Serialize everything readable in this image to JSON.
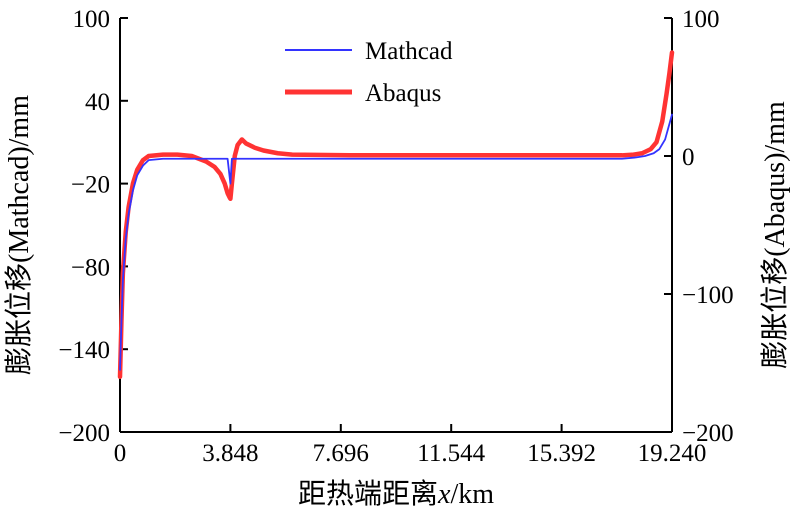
{
  "chart_data": {
    "type": "line",
    "xlabel_prefix": "距热端距离",
    "xlabel_var": "x",
    "xlabel_unit": "/km",
    "ylabel_left": "膨胀位移(Mathcad)/mm",
    "ylabel_right": "膨胀位移(Abaqus)/mm",
    "xlim": [
      0,
      19.24
    ],
    "ylim_left": [
      -200,
      100
    ],
    "ylim_right": [
      -200,
      100
    ],
    "x_ticks": [
      0,
      3.848,
      7.696,
      11.544,
      15.392,
      19.24
    ],
    "x_tick_labels": [
      "0",
      "3.848",
      "7.696",
      "11.544",
      "15.392",
      "19.240"
    ],
    "y_left_ticks": [
      100,
      40,
      -20,
      -80,
      -140,
      -200
    ],
    "y_left_tick_labels": [
      "100",
      "40",
      "−20",
      "−80",
      "−140",
      "−200"
    ],
    "y_right_ticks": [
      100,
      0,
      -100,
      -200
    ],
    "y_right_tick_labels": [
      "100",
      "0",
      "−100",
      "−200"
    ],
    "legend_position": "top-center",
    "series": [
      {
        "name": "Mathcad",
        "color": "#3333ff",
        "axis": "left",
        "x": [
          0,
          0.05,
          0.1,
          0.2,
          0.3,
          0.45,
          0.6,
          0.8,
          1.0,
          1.5,
          2.0,
          3.0,
          3.6,
          3.75,
          3.848,
          3.9,
          4.0,
          5.0,
          6.0,
          8.0,
          10.0,
          12.0,
          14.0,
          16.0,
          17.5,
          18.0,
          18.3,
          18.6,
          18.8,
          19.0,
          19.24
        ],
        "y": [
          -155,
          -120,
          -90,
          -60,
          -42,
          -25,
          -14,
          -7,
          -3,
          -2,
          -2,
          -2,
          -2,
          -2,
          -20,
          -2,
          -2,
          -2,
          -2,
          -2,
          -2,
          -2,
          -2,
          -2,
          -2,
          -1,
          0,
          2,
          5,
          12,
          30
        ]
      },
      {
        "name": "Abaqus",
        "color": "#ff3333",
        "axis": "right",
        "x": [
          0,
          0.05,
          0.1,
          0.2,
          0.3,
          0.45,
          0.6,
          0.8,
          1.0,
          1.5,
          2.0,
          2.5,
          3.0,
          3.3,
          3.5,
          3.65,
          3.75,
          3.82,
          3.848,
          3.9,
          4.0,
          4.1,
          4.25,
          4.4,
          4.7,
          5.0,
          5.5,
          6.0,
          8.0,
          10.0,
          12.0,
          14.0,
          16.0,
          17.5,
          17.9,
          18.2,
          18.5,
          18.7,
          18.9,
          19.05,
          19.15,
          19.24
        ],
        "y": [
          -160,
          -120,
          -85,
          -55,
          -37,
          -20,
          -10,
          -3,
          0,
          1,
          1,
          0,
          -4,
          -8,
          -13,
          -20,
          -27,
          -30,
          -31,
          -20,
          0,
          8,
          12,
          9,
          6,
          4,
          2,
          1,
          0.5,
          0.5,
          0.5,
          0.5,
          0.5,
          0.5,
          1,
          2,
          5,
          10,
          25,
          45,
          60,
          75
        ]
      }
    ]
  }
}
